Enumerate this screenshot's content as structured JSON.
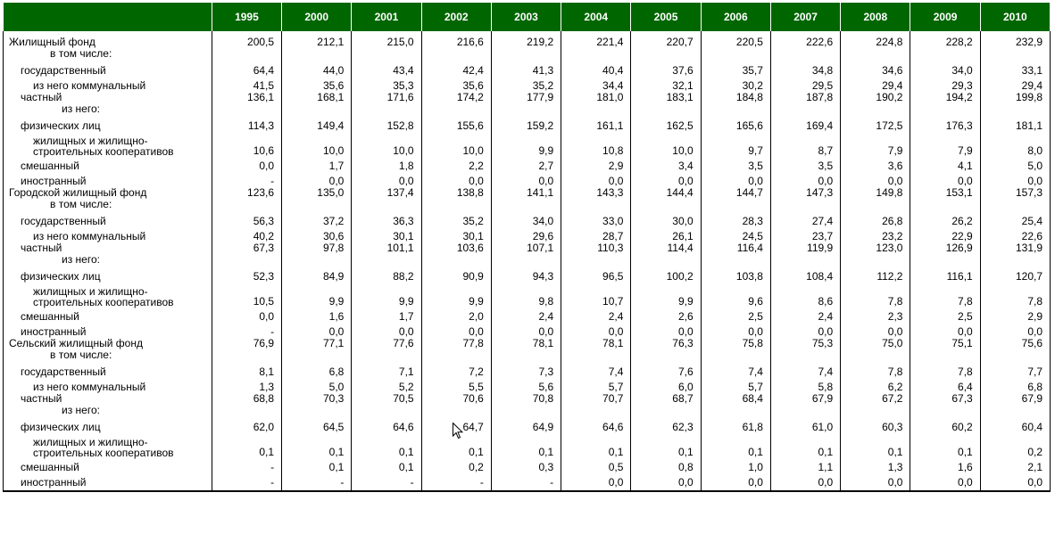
{
  "years": [
    "1995",
    "2000",
    "2001",
    "2002",
    "2003",
    "2004",
    "2005",
    "2006",
    "2007",
    "2008",
    "2009",
    "2010"
  ],
  "rows": [
    {
      "label": "Жилищный фонд",
      "sub": "в том числе:",
      "values": [
        "200,5",
        "212,1",
        "215,0",
        "216,6",
        "219,2",
        "221,4",
        "220,7",
        "220,5",
        "222,6",
        "224,8",
        "228,2",
        "232,9"
      ]
    },
    {
      "label": "государственный",
      "values": [
        "64,4",
        "44,0",
        "43,4",
        "42,4",
        "41,3",
        "40,4",
        "37,6",
        "35,7",
        "34,8",
        "34,6",
        "34,0",
        "33,1"
      ]
    },
    {
      "label": "из него коммунальный",
      "values": [
        "41,5",
        "35,6",
        "35,3",
        "35,6",
        "35,2",
        "34,4",
        "32,1",
        "30,2",
        "29,5",
        "29,4",
        "29,3",
        "29,4"
      ]
    },
    {
      "label": "частный",
      "sub": "из него:",
      "values": [
        "136,1",
        "168,1",
        "171,6",
        "174,2",
        "177,9",
        "181,0",
        "183,1",
        "184,8",
        "187,8",
        "190,2",
        "194,2",
        "199,8"
      ]
    },
    {
      "label": "физических лиц",
      "values": [
        "114,3",
        "149,4",
        "152,8",
        "155,6",
        "159,2",
        "161,1",
        "162,5",
        "165,6",
        "169,4",
        "172,5",
        "176,3",
        "181,1"
      ]
    },
    {
      "label": "жилищных и жилищно-строительных кооперативов",
      "values": [
        "10,6",
        "10,0",
        "10,0",
        "10,0",
        "9,9",
        "10,8",
        "10,0",
        "9,7",
        "8,7",
        "7,9",
        "7,9",
        "8,0"
      ]
    },
    {
      "label": "смешанный",
      "values": [
        "0,0",
        "1,7",
        "1,8",
        "2,2",
        "2,7",
        "2,9",
        "3,4",
        "3,5",
        "3,5",
        "3,6",
        "4,1",
        "5,0"
      ]
    },
    {
      "label": "иностранный",
      "values": [
        "-",
        "0,0",
        "0,0",
        "0,0",
        "0,0",
        "0,0",
        "0,0",
        "0,0",
        "0,0",
        "0,0",
        "0,0",
        "0,0"
      ]
    },
    {
      "label": "Городской жилищный фонд",
      "sub": "в том числе:",
      "values": [
        "123,6",
        "135,0",
        "137,4",
        "138,8",
        "141,1",
        "143,3",
        "144,4",
        "144,7",
        "147,3",
        "149,8",
        "153,1",
        "157,3"
      ]
    },
    {
      "label": "государственный",
      "values": [
        "56,3",
        "37,2",
        "36,3",
        "35,2",
        "34,0",
        "33,0",
        "30,0",
        "28,3",
        "27,4",
        "26,8",
        "26,2",
        "25,4"
      ]
    },
    {
      "label": "из него коммунальный",
      "values": [
        "40,2",
        "30,6",
        "30,1",
        "30,1",
        "29,6",
        "28,7",
        "26,1",
        "24,5",
        "23,7",
        "23,2",
        "22,9",
        "22,6"
      ]
    },
    {
      "label": "частный",
      "sub": "из него:",
      "values": [
        "67,3",
        "97,8",
        "101,1",
        "103,6",
        "107,1",
        "110,3",
        "114,4",
        "116,4",
        "119,9",
        "123,0",
        "126,9",
        "131,9"
      ]
    },
    {
      "label": "физических лиц",
      "values": [
        "52,3",
        "84,9",
        "88,2",
        "90,9",
        "94,3",
        "96,5",
        "100,2",
        "103,8",
        "108,4",
        "112,2",
        "116,1",
        "120,7"
      ]
    },
    {
      "label": "жилищных и жилищно-строительных кооперативов",
      "values": [
        "10,5",
        "9,9",
        "9,9",
        "9,9",
        "9,8",
        "10,7",
        "9,9",
        "9,6",
        "8,6",
        "7,8",
        "7,8",
        "7,8"
      ]
    },
    {
      "label": "смешанный",
      "values": [
        "0,0",
        "1,6",
        "1,7",
        "2,0",
        "2,4",
        "2,4",
        "2,6",
        "2,5",
        "2,4",
        "2,3",
        "2,5",
        "2,9"
      ]
    },
    {
      "label": "иностранный",
      "values": [
        "-",
        "0,0",
        "0,0",
        "0,0",
        "0,0",
        "0,0",
        "0,0",
        "0,0",
        "0,0",
        "0,0",
        "0,0",
        "0,0"
      ]
    },
    {
      "label": "Сельский жилищный фонд",
      "sub": "в том числе:",
      "values": [
        "76,9",
        "77,1",
        "77,6",
        "77,8",
        "78,1",
        "78,1",
        "76,3",
        "75,8",
        "75,3",
        "75,0",
        "75,1",
        "75,6"
      ]
    },
    {
      "label": "государственный",
      "values": [
        "8,1",
        "6,8",
        "7,1",
        "7,2",
        "7,3",
        "7,4",
        "7,6",
        "7,4",
        "7,4",
        "7,8",
        "7,8",
        "7,7"
      ]
    },
    {
      "label": "из него коммунальный",
      "values": [
        "1,3",
        "5,0",
        "5,2",
        "5,5",
        "5,6",
        "5,7",
        "6,0",
        "5,7",
        "5,8",
        "6,2",
        "6,4",
        "6,8"
      ]
    },
    {
      "label": "частный",
      "sub": "из него:",
      "values": [
        "68,8",
        "70,3",
        "70,5",
        "70,6",
        "70,8",
        "70,7",
        "68,7",
        "68,4",
        "67,9",
        "67,2",
        "67,3",
        "67,9"
      ]
    },
    {
      "label": "физических лиц",
      "values": [
        "62,0",
        "64,5",
        "64,6",
        "64,7",
        "64,9",
        "64,6",
        "62,3",
        "61,8",
        "61,0",
        "60,3",
        "60,2",
        "60,4"
      ]
    },
    {
      "label": "жилищных и жилищно-строительных кооперативов",
      "values": [
        "0,1",
        "0,1",
        "0,1",
        "0,1",
        "0,1",
        "0,1",
        "0,1",
        "0,1",
        "0,1",
        "0,1",
        "0,1",
        "0,2"
      ]
    },
    {
      "label": "смешанный",
      "values": [
        "-",
        "0,1",
        "0,1",
        "0,2",
        "0,3",
        "0,5",
        "0,8",
        "1,0",
        "1,1",
        "1,3",
        "1,6",
        "2,1"
      ]
    },
    {
      "label": "иностранный",
      "values": [
        "-",
        "-",
        "-",
        "-",
        "-",
        "0,0",
        "0,0",
        "0,0",
        "0,0",
        "0,0",
        "0,0",
        "0,0"
      ]
    }
  ],
  "colors": {
    "header_bg": "#006600",
    "header_text": "#ffffff"
  },
  "icons": {
    "cursor": "mouse-pointer-icon"
  }
}
